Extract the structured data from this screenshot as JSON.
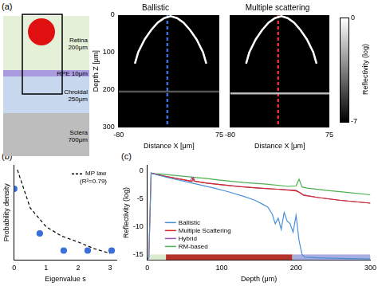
{
  "panel_labels": [
    "(a)",
    "(b)",
    "(c)"
  ],
  "diagram": {
    "layers": [
      {
        "name": "Retina",
        "thickness": "200μm",
        "color": "#e4f0d8"
      },
      {
        "name": "RPE",
        "thickness": "10μm",
        "color": "#a99be0"
      },
      {
        "name": "Chroidal",
        "thickness": "250μm",
        "color": "#c8d8ee"
      },
      {
        "name": "Sclera",
        "thickness": "700μm",
        "color": "#bdbdbd"
      }
    ]
  },
  "chart_data": [
    {
      "type": "image",
      "title": "Ballistic",
      "x_label": "Distance X [μm]",
      "y_label": "Depth Z [μm]",
      "xlim": [
        -80,
        75
      ],
      "xticks": [
        -80,
        75
      ],
      "ylim": [
        300,
        0
      ],
      "yticks": [
        0,
        100,
        200,
        300
      ],
      "series": [
        {
          "color": "#ffffff",
          "x": [
            -55,
            -50,
            -40,
            -30,
            -20,
            -10,
            0,
            10,
            20,
            30,
            40,
            50,
            55
          ],
          "values": [
            130,
            100,
            65,
            40,
            20,
            8,
            3,
            8,
            20,
            40,
            65,
            100,
            130
          ]
        },
        {
          "color": "#555555",
          "x": [
            -80,
            75
          ],
          "values": [
            205,
            205
          ]
        },
        {
          "color": "#3b6fe0",
          "line_style": "dashed",
          "x": [
            -5,
            -5
          ],
          "values": [
            0,
            300
          ]
        }
      ]
    },
    {
      "type": "image",
      "title": "Multiple scattering",
      "x_label": "Distance X [μm]",
      "xlim": [
        -80,
        75
      ],
      "xticks": [
        -80,
        75
      ],
      "ylim": [
        300,
        0
      ],
      "yticks": [
        0,
        100,
        200,
        300
      ],
      "tick_labels": "x",
      "colorbar": {
        "title": "Reflectivity (log)",
        "range": [
          -7,
          0
        ],
        "ticks": [
          0,
          -7
        ]
      },
      "series": [
        {
          "color": "#ffffff",
          "x": [
            -55,
            -50,
            -40,
            -30,
            -20,
            -10,
            0,
            10,
            20,
            30,
            40,
            50,
            55
          ],
          "values": [
            130,
            100,
            65,
            40,
            20,
            8,
            3,
            8,
            20,
            40,
            65,
            100,
            130
          ]
        },
        {
          "color": "#bbbbbb",
          "x": [
            -80,
            75
          ],
          "values": [
            210,
            210
          ]
        },
        {
          "color": "#e03030",
          "line_style": "dashed",
          "x": [
            -5,
            -5
          ],
          "values": [
            0,
            300
          ]
        }
      ]
    },
    {
      "type": "scatter",
      "x_label": "Eigenvalue s",
      "y_label": "Probability density",
      "xlim": [
        0,
        3.2
      ],
      "xticks": [
        0,
        1,
        2,
        3
      ],
      "ylim": [
        0,
        1
      ],
      "tick_labels": "x",
      "legend": "top-right",
      "annotation": "(R²=0.79)",
      "series": [
        {
          "name": "MP law",
          "type": "line",
          "line_style": "dashed",
          "color": "#000000",
          "x": [
            0.1,
            0.5,
            1,
            1.5,
            2,
            2.5,
            3
          ],
          "values": [
            0.95,
            0.55,
            0.35,
            0.25,
            0.19,
            0.12,
            0.07
          ]
        },
        {
          "type": "scatter",
          "marker": "circle",
          "color": "#3a6fd8",
          "x": [
            0,
            0.8,
            1.55,
            2.3,
            3.05
          ],
          "values": [
            0.75,
            0.28,
            0.1,
            0.1,
            0.1
          ]
        }
      ]
    },
    {
      "type": "line",
      "x_label": "Depth (μm)",
      "y_label": "Reflectivity (log)",
      "xlim": [
        0,
        300
      ],
      "xticks": [
        0,
        100,
        200,
        300
      ],
      "ylim": [
        -16,
        1
      ],
      "yticks": [
        0,
        -5,
        -10,
        -15
      ],
      "legend": "bottom-left",
      "layer_bands": [
        {
          "from": 0,
          "to": 25,
          "color": "#dcebd0"
        },
        {
          "from": 25,
          "to": 195,
          "color": "#b5322a"
        },
        {
          "from": 195,
          "to": 300,
          "color": "#a9aee0"
        }
      ],
      "series": [
        {
          "name": "Ballistic",
          "color": "#4a90d9",
          "x": [
            0,
            2,
            5,
            15,
            30,
            50,
            70,
            90,
            110,
            130,
            145,
            155,
            162,
            168,
            172,
            176,
            180,
            184,
            188,
            192,
            196,
            200,
            204,
            208,
            212,
            230,
            260,
            300
          ],
          "values": [
            -16,
            -15.5,
            -0.4,
            -0.8,
            -1.3,
            -1.9,
            -2.5,
            -3.1,
            -3.8,
            -4.6,
            -5.3,
            -6,
            -6.5,
            -7.8,
            -9.5,
            -8.5,
            -10.5,
            -7.5,
            -9,
            -9.5,
            -11,
            -8,
            -12.5,
            -15,
            -15.5,
            -15.6,
            -15.7,
            -15.8
          ]
        },
        {
          "name": "Multiple Scattering",
          "color": "#d62d20",
          "x": [
            0,
            2,
            5,
            20,
            40,
            60,
            62,
            64,
            80,
            100,
            120,
            150,
            175,
            200,
            205,
            210,
            230,
            260,
            300
          ],
          "values": [
            -16,
            -15.5,
            -0.4,
            -0.9,
            -1.4,
            -1.9,
            -1.3,
            -1.9,
            -2.2,
            -2.5,
            -2.8,
            -3.1,
            -3.3,
            -3.6,
            -3.9,
            -4.4,
            -4.8,
            -5.3,
            -5.8
          ]
        },
        {
          "name": "Hybrid",
          "color": "#9b4fb6",
          "x": [
            5,
            20,
            40,
            58,
            60,
            62,
            80,
            100,
            130,
            150,
            175,
            200,
            210,
            230,
            260,
            300
          ],
          "values": [
            -0.4,
            -0.9,
            -1.4,
            -1.8,
            -1.2,
            -1.8,
            -2.2,
            -2.5,
            -2.9,
            -3.1,
            -3.3,
            -3.5,
            -4.3,
            -4.8,
            -5.3,
            -5.8
          ]
        },
        {
          "name": "RM-based",
          "color": "#4caf50",
          "x": [
            5,
            20,
            50,
            80,
            100,
            130,
            160,
            190,
            200,
            204,
            208,
            215,
            240,
            270,
            300
          ],
          "values": [
            -0.5,
            -0.6,
            -1,
            -1.4,
            -1.7,
            -2.1,
            -2.4,
            -2.8,
            -2.7,
            -1.5,
            -2.9,
            -3.1,
            -3.5,
            -3.9,
            -4.3
          ]
        }
      ]
    }
  ]
}
